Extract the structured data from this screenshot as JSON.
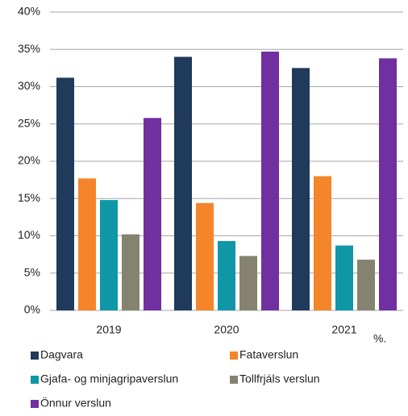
{
  "chart_data": {
    "type": "bar",
    "categories": [
      "2019",
      "2020",
      "2021"
    ],
    "series": [
      {
        "name": "Dagvara",
        "color": "#1f3a5a",
        "values": [
          31.2,
          34.0,
          32.5
        ]
      },
      {
        "name": "Fataverslun",
        "color": "#f5852a",
        "values": [
          17.7,
          14.4,
          18.0
        ]
      },
      {
        "name": "Gjafa- og minjagripaverslun",
        "color": "#0f97a8",
        "values": [
          14.8,
          9.3,
          8.7
        ]
      },
      {
        "name": "Tollfrjáls verslun",
        "color": "#85836f",
        "values": [
          10.2,
          7.3,
          6.8
        ]
      },
      {
        "name": "Önnur verslun",
        "color": "#7030a0",
        "values": [
          25.8,
          34.7,
          33.8
        ]
      }
    ],
    "ylim": [
      0,
      40
    ],
    "yticks": [
      {
        "value": 0,
        "label": "0%"
      },
      {
        "value": 5,
        "label": "5%"
      },
      {
        "value": 10,
        "label": "10%"
      },
      {
        "value": 15,
        "label": "15%"
      },
      {
        "value": 20,
        "label": "20%"
      },
      {
        "value": 25,
        "label": "25%"
      },
      {
        "value": 30,
        "label": "30%"
      },
      {
        "value": 35,
        "label": "35%"
      },
      {
        "value": 40,
        "label": "40%"
      }
    ],
    "annotation": "%.",
    "grid": true
  }
}
